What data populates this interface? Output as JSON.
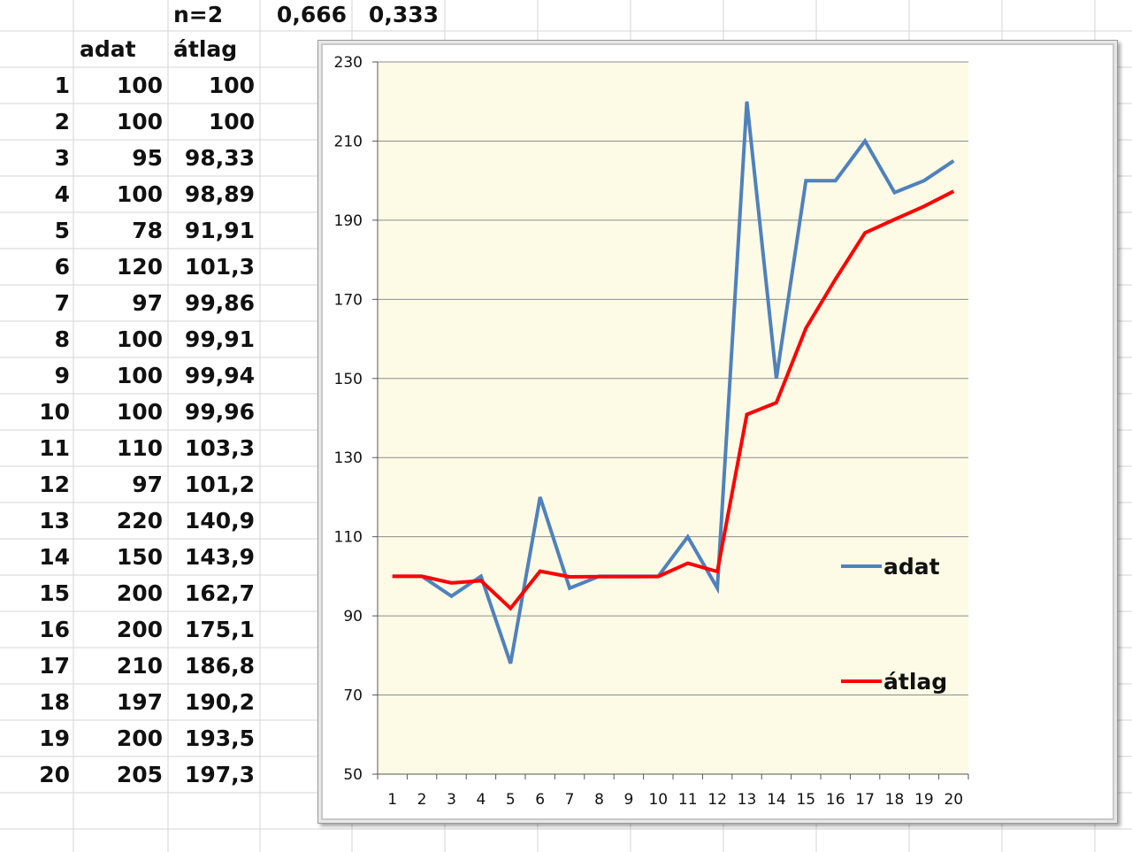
{
  "sheet": {
    "top_row": {
      "n_label": "n=2",
      "alpha": "0,666",
      "beta": "0,333"
    },
    "headers": {
      "data": "adat",
      "avg": "átlag"
    },
    "rows": [
      {
        "i": "1",
        "adat": "100",
        "atlag": "100"
      },
      {
        "i": "2",
        "adat": "100",
        "atlag": "100"
      },
      {
        "i": "3",
        "adat": "95",
        "atlag": "98,33"
      },
      {
        "i": "4",
        "adat": "100",
        "atlag": "98,89"
      },
      {
        "i": "5",
        "adat": "78",
        "atlag": "91,91"
      },
      {
        "i": "6",
        "adat": "120",
        "atlag": "101,3"
      },
      {
        "i": "7",
        "adat": "97",
        "atlag": "99,86"
      },
      {
        "i": "8",
        "adat": "100",
        "atlag": "99,91"
      },
      {
        "i": "9",
        "adat": "100",
        "atlag": "99,94"
      },
      {
        "i": "10",
        "adat": "100",
        "atlag": "99,96"
      },
      {
        "i": "11",
        "adat": "110",
        "atlag": "103,3"
      },
      {
        "i": "12",
        "adat": "97",
        "atlag": "101,2"
      },
      {
        "i": "13",
        "adat": "220",
        "atlag": "140,9"
      },
      {
        "i": "14",
        "adat": "150",
        "atlag": "143,9"
      },
      {
        "i": "15",
        "adat": "200",
        "atlag": "162,7"
      },
      {
        "i": "16",
        "adat": "200",
        "atlag": "175,1"
      },
      {
        "i": "17",
        "adat": "210",
        "atlag": "186,8"
      },
      {
        "i": "18",
        "adat": "197",
        "atlag": "190,2"
      },
      {
        "i": "19",
        "adat": "200",
        "atlag": "193,5"
      },
      {
        "i": "20",
        "adat": "205",
        "atlag": "197,3"
      }
    ]
  },
  "chart_data": {
    "type": "line",
    "x": [
      1,
      2,
      3,
      4,
      5,
      6,
      7,
      8,
      9,
      10,
      11,
      12,
      13,
      14,
      15,
      16,
      17,
      18,
      19,
      20
    ],
    "series": [
      {
        "name": "adat",
        "color": "#4f81bd",
        "values": [
          100,
          100,
          95,
          100,
          78,
          120,
          97,
          100,
          100,
          100,
          110,
          97,
          220,
          150,
          200,
          200,
          210,
          197,
          200,
          205
        ]
      },
      {
        "name": "átlag",
        "color": "#ff0000",
        "values": [
          100,
          100,
          98.33,
          98.89,
          91.91,
          101.3,
          99.86,
          99.91,
          99.94,
          99.96,
          103.3,
          101.2,
          140.9,
          143.9,
          162.7,
          175.1,
          186.8,
          190.2,
          193.5,
          197.3
        ]
      }
    ],
    "ylim": [
      50,
      230
    ],
    "yticks": [
      50,
      70,
      90,
      110,
      130,
      150,
      170,
      190,
      210,
      230
    ],
    "xticks": [
      "1",
      "2",
      "3",
      "4",
      "5",
      "6",
      "7",
      "8",
      "9",
      "10",
      "11",
      "12",
      "13",
      "14",
      "15",
      "16",
      "17",
      "18",
      "19",
      "20"
    ],
    "grid": true,
    "legend": "right",
    "plot_background": "#fdfbe6"
  }
}
